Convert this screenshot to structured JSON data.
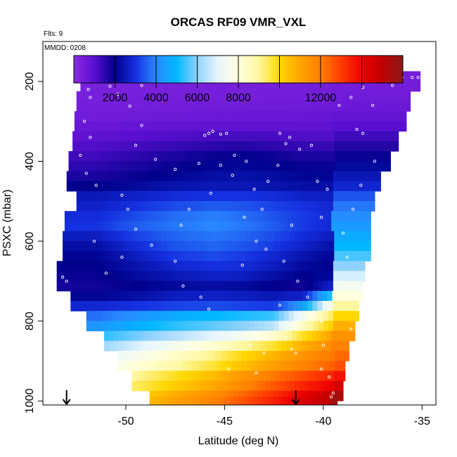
{
  "chart_data": {
    "type": "heatmap",
    "title": "ORCAS RF09 VMR_VXL",
    "corner_notes": [
      "Flts: 9",
      "MMDD: 0208"
    ],
    "xlabel": "Latitude (deg N)",
    "ylabel": "PSXC (mbar)",
    "xlim": [
      -54.2,
      -34.3
    ],
    "ylim": [
      1010,
      100
    ],
    "x_ticks": [
      -50,
      -45,
      -40,
      -35
    ],
    "x_tick_labels": [
      "-50",
      "-45",
      "-40",
      "-35"
    ],
    "y_ticks": [
      200,
      400,
      600,
      800,
      1000
    ],
    "y_tick_labels": [
      "200",
      "400",
      "600",
      "800",
      "1000"
    ],
    "colorbar": {
      "range": [
        0,
        16000
      ],
      "tick_values": [
        2000,
        4000,
        6000,
        8000,
        12000
      ],
      "tick_labels": [
        "2000",
        "4000",
        "6000",
        "8000",
        "12000"
      ],
      "major_lines": [
        2000,
        4000,
        6000,
        8000,
        10000,
        12000,
        14000
      ],
      "stops": [
        {
          "v": 0,
          "c": "#8a2be2"
        },
        {
          "v": 1000,
          "c": "#5a0fd0"
        },
        {
          "v": 2000,
          "c": "#00008b"
        },
        {
          "v": 3000,
          "c": "#1530e0"
        },
        {
          "v": 4000,
          "c": "#2a88ff"
        },
        {
          "v": 5000,
          "c": "#00b8ff"
        },
        {
          "v": 6000,
          "c": "#8fd2ff"
        },
        {
          "v": 7000,
          "c": "#e8f6ff"
        },
        {
          "v": 8000,
          "c": "#ffffe0"
        },
        {
          "v": 9000,
          "c": "#fff7a0"
        },
        {
          "v": 10000,
          "c": "#ffd700"
        },
        {
          "v": 11000,
          "c": "#ffa500"
        },
        {
          "v": 12000,
          "c": "#ff7f00"
        },
        {
          "v": 13000,
          "c": "#ff3c00"
        },
        {
          "v": 14000,
          "c": "#ee0000"
        },
        {
          "v": 15000,
          "c": "#c00000"
        },
        {
          "v": 16000,
          "c": "#8b1a1a"
        }
      ]
    },
    "heatmap": {
      "pressure_levels": [
        187,
        212,
        237,
        262,
        287,
        312,
        337,
        362,
        387,
        412,
        437,
        462,
        487,
        512,
        537,
        562,
        587,
        612,
        637,
        662,
        687,
        712,
        737,
        762,
        787,
        812,
        837,
        862,
        887,
        912,
        937,
        962,
        987,
        1002
      ],
      "row_half_height_mbar": 12.5,
      "lat_start": [
        -52.3,
        -52.3,
        -52.5,
        -52.5,
        -52.6,
        -52.6,
        -52.7,
        -52.7,
        -52.9,
        -52.9,
        -53.0,
        -53.0,
        -52.5,
        -52.5,
        -53.1,
        -53.1,
        -53.2,
        -53.2,
        -53.2,
        -53.5,
        -53.5,
        -53.5,
        -52.8,
        -52.8,
        -52.0,
        -52.0,
        -51.1,
        -51.1,
        -50.4,
        -50.4,
        -49.7,
        -49.7,
        -48.8,
        -48.8
      ],
      "lat_end": [
        -35.1,
        -35.1,
        -35.6,
        -35.6,
        -35.8,
        -35.8,
        -36.2,
        -36.2,
        -36.6,
        -36.6,
        -37.1,
        -37.1,
        -37.4,
        -37.4,
        -37.6,
        -37.6,
        -37.6,
        -37.6,
        -37.6,
        -37.9,
        -37.9,
        -38.0,
        -38.0,
        -38.2,
        -38.2,
        -38.4,
        -38.4,
        -38.7,
        -38.7,
        -38.9,
        -38.9,
        -39.0,
        -39.0,
        -39.3
      ],
      "lat_breaks": [
        -51.5,
        -49.5,
        -47.5,
        -45.5,
        -44.0,
        -42.5,
        -41.0,
        -39.5
      ],
      "values": [
        [
          350,
          360,
          370,
          380,
          390,
          400,
          420,
          450,
          470
        ],
        [
          370,
          380,
          390,
          400,
          410,
          420,
          440,
          470,
          500
        ],
        [
          400,
          410,
          420,
          430,
          440,
          450,
          470,
          500,
          540
        ],
        [
          450,
          470,
          490,
          510,
          520,
          540,
          560,
          600,
          650
        ],
        [
          550,
          580,
          610,
          640,
          660,
          680,
          700,
          740,
          800
        ],
        [
          700,
          760,
          820,
          880,
          900,
          880,
          860,
          900,
          1000
        ],
        [
          900,
          1000,
          1100,
          1200,
          1250,
          1200,
          1100,
          1100,
          1300
        ],
        [
          1100,
          1250,
          1400,
          1550,
          1600,
          1500,
          1400,
          1400,
          1600
        ],
        [
          1300,
          1500,
          1700,
          1900,
          1950,
          1850,
          1700,
          1700,
          1900
        ],
        [
          1500,
          1700,
          1900,
          2100,
          2150,
          2050,
          1900,
          1900,
          2200
        ],
        [
          1700,
          1900,
          2100,
          2300,
          2350,
          2250,
          2100,
          2100,
          2500
        ],
        [
          2000,
          2200,
          2400,
          2500,
          2500,
          2400,
          2300,
          2300,
          2800
        ],
        [
          2500,
          2700,
          2900,
          3000,
          3000,
          2900,
          2700,
          2600,
          3400
        ],
        [
          2700,
          3000,
          3300,
          3500,
          3400,
          3200,
          3000,
          2800,
          3800
        ],
        [
          2900,
          3300,
          3700,
          3900,
          3700,
          3400,
          3100,
          2900,
          4100
        ],
        [
          3000,
          3500,
          3800,
          4000,
          3800,
          3500,
          3100,
          2800,
          4400
        ],
        [
          2600,
          3200,
          3600,
          3800,
          3600,
          3300,
          2900,
          2600,
          4700
        ],
        [
          2300,
          2900,
          3400,
          3600,
          3400,
          3100,
          2700,
          2300,
          5000
        ],
        [
          2100,
          2600,
          3100,
          3300,
          3100,
          2800,
          2400,
          2100,
          5500
        ],
        [
          2000,
          2400,
          2800,
          3000,
          2900,
          2600,
          2200,
          2000,
          6000
        ],
        [
          1900,
          2200,
          2500,
          2700,
          2600,
          2300,
          2000,
          2200,
          6800
        ],
        [
          1800,
          2000,
          2200,
          2300,
          2200,
          2000,
          1800,
          2800,
          7500
        ],
        [
          2100,
          2300,
          2600,
          2700,
          2600,
          2500,
          2700,
          5500,
          8000
        ],
        [
          2800,
          3000,
          3200,
          3300,
          3200,
          3100,
          4500,
          8000,
          9000
        ],
        [
          3700,
          4200,
          4700,
          5000,
          5200,
          5400,
          7500,
          9500,
          10000
        ],
        [
          4300,
          4800,
          5300,
          5700,
          6000,
          6500,
          8500,
          10300,
          10800
        ],
        [
          5200,
          5800,
          6400,
          7000,
          7600,
          8300,
          9800,
          11200,
          11500
        ],
        [
          6000,
          6800,
          7600,
          8300,
          9000,
          9700,
          10800,
          11700,
          11900
        ],
        [
          6800,
          7600,
          8400,
          9200,
          10000,
          10700,
          11500,
          12100,
          12300
        ],
        [
          7300,
          8100,
          8900,
          9700,
          10500,
          11200,
          11900,
          12500,
          12700
        ],
        [
          8200,
          9000,
          9800,
          10600,
          11400,
          12100,
          12800,
          13400,
          13700
        ],
        [
          8600,
          9400,
          10200,
          11000,
          11800,
          12600,
          13400,
          14100,
          14500
        ],
        [
          9200,
          10000,
          10800,
          11600,
          12400,
          13200,
          14100,
          14900,
          15400
        ],
        [
          9500,
          10300,
          11100,
          11900,
          12700,
          13500,
          14400,
          15200,
          15700
        ]
      ]
    },
    "sample_points": [
      [
        -51.2,
        188
      ],
      [
        -51.0,
        188
      ],
      [
        -51.5,
        200
      ],
      [
        -50.8,
        212
      ],
      [
        -51.9,
        220
      ],
      [
        -51.8,
        240
      ],
      [
        -50.4,
        232
      ],
      [
        -49.8,
        262
      ],
      [
        -52.1,
        300
      ],
      [
        -49.2,
        310
      ],
      [
        -51.8,
        340
      ],
      [
        -49.5,
        360
      ],
      [
        -52.3,
        385
      ],
      [
        -48.5,
        395
      ],
      [
        -52.0,
        430
      ],
      [
        -47.5,
        420
      ],
      [
        -51.5,
        460
      ],
      [
        -50.2,
        485
      ],
      [
        -46.3,
        405
      ],
      [
        -45.8,
        330
      ],
      [
        -45.6,
        325
      ],
      [
        -45.2,
        332
      ],
      [
        -46.0,
        335
      ],
      [
        -44.9,
        330
      ],
      [
        -44.5,
        385
      ],
      [
        -43.9,
        400
      ],
      [
        -45.2,
        410
      ],
      [
        -44.6,
        435
      ],
      [
        -43.5,
        470
      ],
      [
        -44.0,
        540
      ],
      [
        -43.4,
        600
      ],
      [
        -44.1,
        660
      ],
      [
        -47.5,
        650
      ],
      [
        -48.7,
        610
      ],
      [
        -49.5,
        570
      ],
      [
        -49.9,
        520
      ],
      [
        -50.2,
        640
      ],
      [
        -51.0,
        680
      ],
      [
        -51.6,
        600
      ],
      [
        -53.2,
        690
      ],
      [
        -53.0,
        700
      ],
      [
        -47.1,
        712
      ],
      [
        -46.2,
        740
      ],
      [
        -45.8,
        770
      ],
      [
        -44.5,
        830
      ],
      [
        -43.7,
        860
      ],
      [
        -43.4,
        930
      ],
      [
        -42.2,
        330
      ],
      [
        -41.7,
        340
      ],
      [
        -41.9,
        356
      ],
      [
        -41.2,
        370
      ],
      [
        -40.6,
        360
      ],
      [
        -40.3,
        450
      ],
      [
        -39.8,
        470
      ],
      [
        -40.1,
        540
      ],
      [
        -41.6,
        560
      ],
      [
        -42.9,
        620
      ],
      [
        -42.0,
        650
      ],
      [
        -41.3,
        700
      ],
      [
        -40.8,
        740
      ],
      [
        -40.5,
        780
      ],
      [
        -40.1,
        800
      ],
      [
        -40.0,
        860
      ],
      [
        -41.6,
        870
      ],
      [
        -41.4,
        880
      ],
      [
        -40.1,
        920
      ],
      [
        -39.7,
        940
      ],
      [
        -39.5,
        980
      ],
      [
        -39.6,
        990
      ],
      [
        -42.3,
        410
      ],
      [
        -42.8,
        450
      ],
      [
        -43.1,
        520
      ],
      [
        -39.2,
        260
      ],
      [
        -38.6,
        240
      ],
      [
        -38.0,
        215
      ],
      [
        -37.7,
        190
      ],
      [
        -37.2,
        190
      ],
      [
        -36.8,
        190
      ],
      [
        -36.4,
        188
      ],
      [
        -36.0,
        190
      ],
      [
        -35.5,
        190
      ],
      [
        -35.2,
        190
      ],
      [
        -35.0,
        190
      ],
      [
        -36.5,
        210
      ],
      [
        -37.5,
        260
      ],
      [
        -38.3,
        320
      ],
      [
        -38.0,
        330
      ],
      [
        -37.4,
        400
      ],
      [
        -38.1,
        460
      ],
      [
        -38.5,
        520
      ],
      [
        -39.0,
        580
      ],
      [
        -38.8,
        640
      ],
      [
        -39.1,
        700
      ],
      [
        -39.5,
        760
      ],
      [
        -38.6,
        820
      ],
      [
        -46.8,
        520
      ],
      [
        -47.2,
        560
      ],
      [
        -45.7,
        480
      ],
      [
        -42.2,
        760
      ],
      [
        -43.0,
        880
      ],
      [
        -41.9,
        840
      ],
      [
        -44.8,
        920
      ],
      [
        -48.8,
        200
      ],
      [
        -49.2,
        210
      ]
    ],
    "arrows": [
      -53.0,
      -41.4
    ],
    "legend": null
  }
}
